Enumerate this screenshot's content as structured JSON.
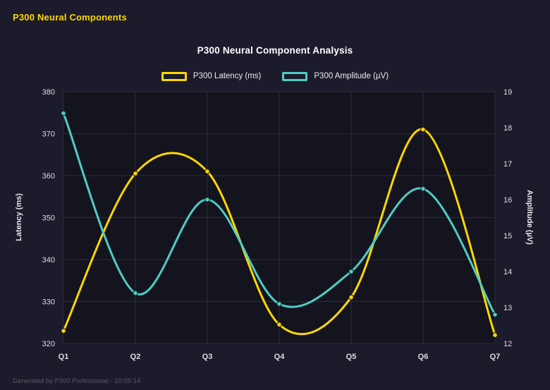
{
  "page": {
    "header_title": "P300 Neural Components",
    "footer_text": "Generated by P300 Professional - 10:05:14"
  },
  "chart_data": {
    "type": "line",
    "title": "P300 Neural Component Analysis",
    "categories": [
      "Q1",
      "Q2",
      "Q3",
      "Q4",
      "Q5",
      "Q6",
      "Q7"
    ],
    "series": [
      {
        "name": "P300 Latency (ms)",
        "color": "#ffd700",
        "axis": "left",
        "values": [
          323,
          360.5,
          361,
          324.5,
          331,
          371,
          322
        ]
      },
      {
        "name": "P300 Amplitude (µV)",
        "color": "#4ecdc4",
        "axis": "right",
        "values": [
          18.4,
          13.4,
          16.0,
          13.1,
          14.0,
          16.3,
          12.8
        ]
      }
    ],
    "axes": {
      "left": {
        "label": "Latency (ms)",
        "min": 320,
        "max": 380,
        "ticks": [
          320,
          330,
          340,
          350,
          360,
          370,
          380
        ]
      },
      "right": {
        "label": "Amplitude (µV)",
        "min": 12,
        "max": 19,
        "ticks": [
          12,
          13,
          14,
          15,
          16,
          17,
          18,
          19
        ]
      }
    },
    "grid": true,
    "legend_position": "top",
    "curve": "smooth"
  },
  "colors": {
    "background": "#1b1b2c",
    "plot_background": "#14141f",
    "grid": "#2b2b3b",
    "text": "#e8e8ee",
    "tick_text": "#dcdce6",
    "accent": "#ffd700",
    "muted": "#5a5a68"
  }
}
